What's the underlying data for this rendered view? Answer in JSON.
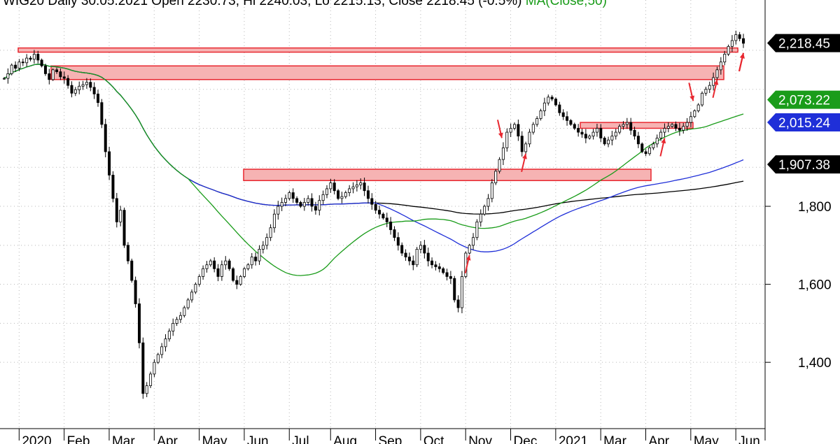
{
  "header": {
    "symbol": "WIG20",
    "text": "Daily 30.05.2021 Open 2230.73, Hi 2240.03, Lo 2215.13, Close 2218.45 (-0.5%)",
    "ma_text": "MA(Close,50)"
  },
  "colors": {
    "price": "#000000",
    "ma50": "#1a9c1a",
    "ma100": "#1f2fd8",
    "ma200": "#000000",
    "zone_fill": "#f6b3b3",
    "zone_stroke": "#e8272f",
    "arrow": "#e8272f",
    "grid": "#b8b8b8"
  },
  "chart_data": {
    "type": "candlestick",
    "symbol": "WIG20",
    "timeframe": "Daily",
    "ylim": [
      1230,
      2320
    ],
    "grid": true,
    "y_ticks": [
      "1,400",
      "1,600",
      "1,800"
    ],
    "x_labels": [
      "2020",
      "Feb",
      "Mar",
      "Apr",
      "May",
      "Jun",
      "Jul",
      "Aug",
      "Sep",
      "Oct",
      "Nov",
      "Dec",
      "2021",
      "Mar",
      "Apr",
      "May",
      "Jun"
    ],
    "last_values": [
      {
        "label": "2,218.45",
        "value": 2218.45,
        "color": "#000000"
      },
      {
        "label": "2,073.22",
        "value": 2073.22,
        "color": "#1a9c1a"
      },
      {
        "label": "2,015.24",
        "value": 2015.24,
        "color": "#1f2fd8"
      },
      {
        "label": "1,907.38",
        "value": 1907.38,
        "color": "#000000"
      }
    ],
    "close_series": [
      2128,
      2140,
      2162,
      2154,
      2170,
      2168,
      2180,
      2177,
      2190,
      2175,
      2160,
      2140,
      2125,
      2150,
      2145,
      2132,
      2128,
      2110,
      2090,
      2099,
      2108,
      2112,
      2118,
      2105,
      2088,
      2066,
      2010,
      1940,
      1880,
      1820,
      1760,
      1790,
      1700,
      1660,
      1610,
      1550,
      1450,
      1320,
      1340,
      1370,
      1400,
      1420,
      1440,
      1460,
      1480,
      1500,
      1510,
      1520,
      1540,
      1560,
      1580,
      1600,
      1620,
      1640,
      1650,
      1660,
      1640,
      1620,
      1650,
      1660,
      1640,
      1610,
      1600,
      1620,
      1640,
      1650,
      1670,
      1660,
      1690,
      1700,
      1720,
      1745,
      1780,
      1800,
      1810,
      1820,
      1835,
      1820,
      1810,
      1800,
      1810,
      1820,
      1800,
      1790,
      1815,
      1830,
      1845,
      1860,
      1840,
      1820,
      1825,
      1835,
      1845,
      1850,
      1855,
      1860,
      1840,
      1820,
      1805,
      1790,
      1780,
      1770,
      1760,
      1740,
      1720,
      1700,
      1680,
      1670,
      1660,
      1650,
      1690,
      1700,
      1680,
      1660,
      1650,
      1645,
      1640,
      1630,
      1620,
      1615,
      1560,
      1540,
      1620,
      1680,
      1700,
      1720,
      1760,
      1780,
      1800,
      1820,
      1860,
      1890,
      1920,
      1950,
      1990,
      2000,
      2010,
      1980,
      1940,
      1960,
      1990,
      2010,
      2025,
      2045,
      2065,
      2080,
      2075,
      2060,
      2040,
      2030,
      2020,
      2010,
      2000,
      1990,
      1985,
      1975,
      1980,
      1990,
      2000,
      1975,
      1960,
      1970,
      1980,
      1990,
      2005,
      2010,
      2015,
      1995,
      1980,
      1960,
      1940,
      1935,
      1950,
      1960,
      1975,
      1990,
      2000,
      2005,
      2010,
      2000,
      1995,
      2005,
      2015,
      2030,
      2045,
      2060,
      2090,
      2100,
      2110,
      2130,
      2150,
      2170,
      2190,
      2210,
      2225,
      2240,
      2230,
      2218
    ]
  },
  "zones": [
    {
      "from": 2196,
      "to": 2206
    },
    {
      "from": 2125,
      "to": 2160
    },
    {
      "from": 2000,
      "to": 2015
    },
    {
      "from": 1866,
      "to": 1895
    }
  ],
  "arrows": [
    {
      "idx": 124,
      "dir": "up"
    },
    {
      "idx": 133,
      "dir": "down"
    },
    {
      "idx": 139,
      "dir": "up"
    },
    {
      "idx": 176,
      "dir": "up"
    },
    {
      "idx": 184,
      "dir": "down"
    },
    {
      "idx": 190,
      "dir": "up"
    },
    {
      "idx": 197,
      "dir": "up"
    },
    {
      "idx": 205,
      "dir": "up"
    },
    {
      "idx": 211,
      "dir": "up"
    }
  ]
}
